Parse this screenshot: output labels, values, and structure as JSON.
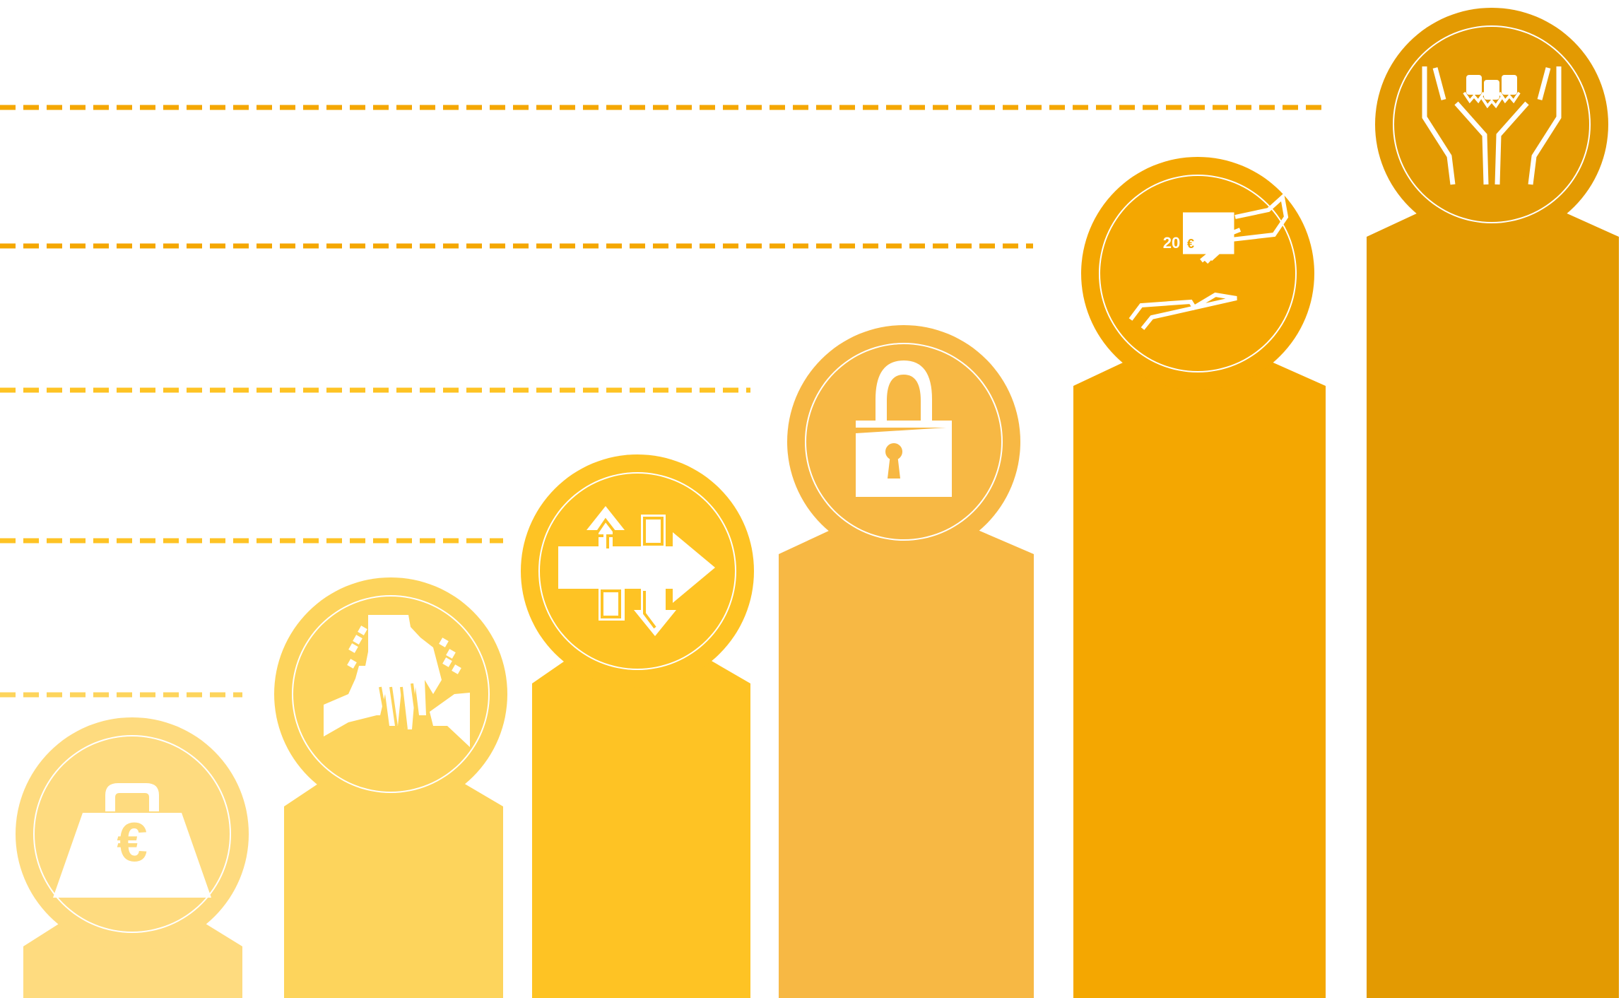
{
  "diagram": {
    "type": "step-infographic",
    "steps": [
      {
        "icon": "euro-weight-icon",
        "color": "#FEDB7F",
        "level": 1
      },
      {
        "icon": "hand-with-coins-icon",
        "color": "#FDD45C",
        "level": 2
      },
      {
        "icon": "exchange-arrows-icon",
        "color": "#FEC324",
        "level": 3
      },
      {
        "icon": "padlock-icon",
        "color": "#F7B844",
        "level": 4
      },
      {
        "icon": "hand-giving-banknote-icon",
        "color": "#F4A701",
        "level": 5
      },
      {
        "icon": "hands-holding-people-icon",
        "color": "#E39A02",
        "level": 6
      }
    ],
    "guide_line_count": 5,
    "banknote_label": "20",
    "banknote_symbol": "€",
    "euro_symbol": "€"
  }
}
